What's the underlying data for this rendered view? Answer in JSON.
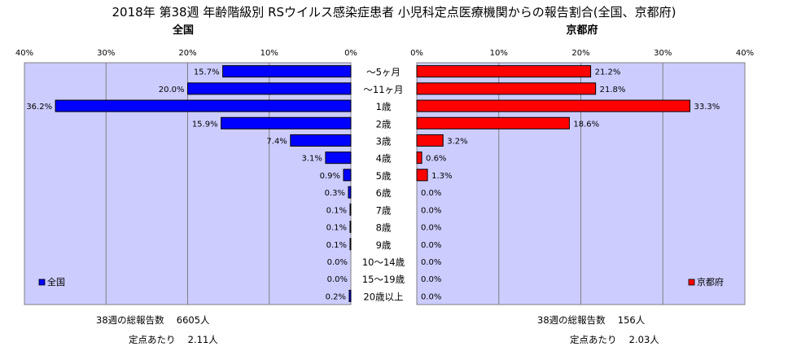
{
  "chart_data": {
    "type": "bar",
    "title": "2018年 第38週 年齢階級別 RSウイルス感染症患者 小児科定点医療機関からの報告割合(全国、京都府)",
    "categories": [
      "～5ヶ月",
      "～11ヶ月",
      "1歳",
      "2歳",
      "3歳",
      "4歳",
      "5歳",
      "6歳",
      "7歳",
      "8歳",
      "9歳",
      "10～14歳",
      "15～19歳",
      "20歳以上"
    ],
    "xlim": [
      0,
      40
    ],
    "ticks": [
      "40%",
      "30%",
      "20%",
      "10%",
      "0%"
    ],
    "ticks_right": [
      "0%",
      "10%",
      "20%",
      "30%",
      "40%"
    ],
    "grid": true,
    "series": [
      {
        "name": "全国",
        "color": "#0000ff",
        "values": [
          15.7,
          20.0,
          36.2,
          15.9,
          7.4,
          3.1,
          0.9,
          0.3,
          0.1,
          0.1,
          0.1,
          0.0,
          0.0,
          0.2
        ],
        "labels": [
          "15.7%",
          "20.0%",
          "36.2%",
          "15.9%",
          "7.4%",
          "3.1%",
          "0.9%",
          "0.3%",
          "0.1%",
          "0.1%",
          "0.1%",
          "0.0%",
          "0.0%",
          "0.2%"
        ],
        "legend_position": "bottom-left"
      },
      {
        "name": "京都府",
        "color": "#ff0000",
        "values": [
          21.2,
          21.8,
          33.3,
          18.6,
          3.2,
          0.6,
          1.3,
          0.0,
          0.0,
          0.0,
          0.0,
          0.0,
          0.0,
          0.0
        ],
        "labels": [
          "21.2%",
          "21.8%",
          "33.3%",
          "18.6%",
          "3.2%",
          "0.6%",
          "1.3%",
          "0.0%",
          "0.0%",
          "0.0%",
          "0.0%",
          "0.0%",
          "0.0%",
          "0.0%"
        ],
        "legend_position": "bottom-right"
      }
    ],
    "plot_background": "#ccccff",
    "footer": {
      "left_total": "38週の総報告数　 6605人",
      "left_per": "定点あたり　 2.11人",
      "right_total": "38週の総報告数　 156人",
      "right_per": "定点あたり　 2.03人"
    }
  }
}
